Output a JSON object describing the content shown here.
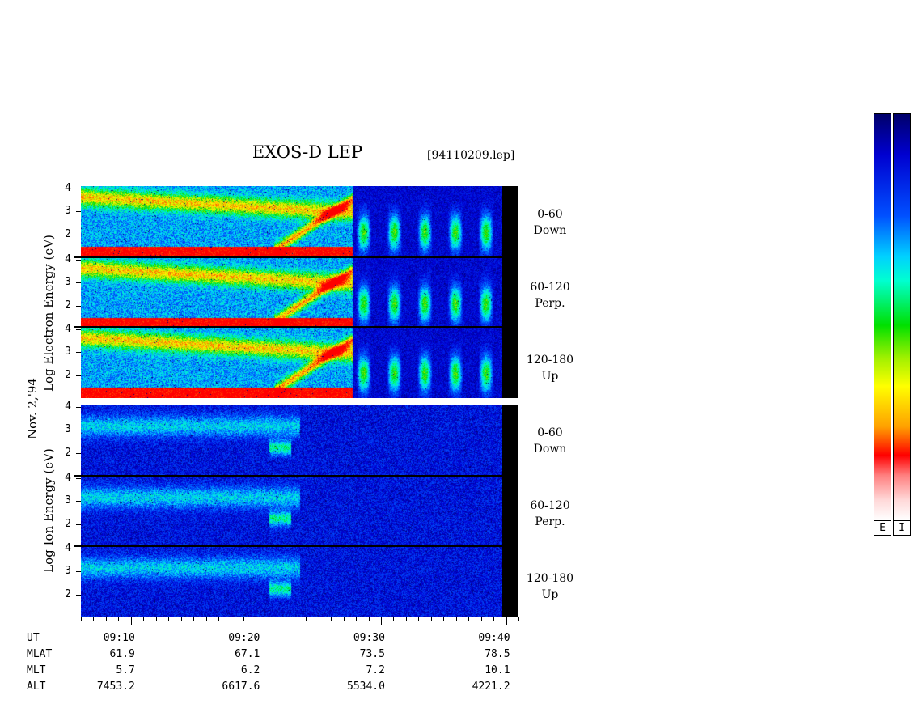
{
  "title": "EXOS-D LEP",
  "file_id": "[94110209.lep]",
  "date_label": "Nov. 2,'94",
  "electron_axis_label": "Log  Electron  Energy (eV)",
  "ion_axis_label": "Log  Ion  Energy (eV)",
  "panels": [
    {
      "species": "electron",
      "angle": "0-60",
      "direction": "Down"
    },
    {
      "species": "electron",
      "angle": "60-120",
      "direction": "Perp."
    },
    {
      "species": "electron",
      "angle": "120-180",
      "direction": "Up"
    },
    {
      "species": "ion",
      "angle": "0-60",
      "direction": "Down"
    },
    {
      "species": "ion",
      "angle": "60-120",
      "direction": "Perp."
    },
    {
      "species": "ion",
      "angle": "120-180",
      "direction": "Up"
    }
  ],
  "y_tick_labels": [
    "4",
    "3",
    "2"
  ],
  "colorbar_labels": [
    "E",
    "I"
  ],
  "colors": {
    "background": "#ffffff",
    "data_gap": "#000000",
    "colorbar_top": "#00006a",
    "colorbar_bottom": "#ffffff"
  },
  "chart_data": {
    "type": "heatmap",
    "title": "EXOS-D LEP",
    "ylabel_electron": "Log Electron Energy (eV)",
    "ylabel_ion": "Log Ion Energy (eV)",
    "ylim": [
      1,
      4.1
    ],
    "y_ticks": [
      4,
      3,
      2
    ],
    "x_ticks": [
      "09:10",
      "09:20",
      "09:30",
      "09:40"
    ],
    "x_range_ut": [
      "09:06",
      "09:41"
    ],
    "ephemeris": {
      "labels": [
        "UT",
        "MLAT",
        "MLT",
        "ALT"
      ],
      "UT": [
        "09:10",
        "09:20",
        "09:30",
        "09:40"
      ],
      "MLAT": [
        "61.9",
        "67.1",
        "73.5",
        "78.5"
      ],
      "MLT": [
        "5.7",
        "6.2",
        "7.2",
        "10.1"
      ],
      "ALT": [
        "7453.2",
        "6617.6",
        "5534.0",
        "4221.2"
      ]
    },
    "colorbar_labels": [
      "E",
      "I"
    ]
  }
}
